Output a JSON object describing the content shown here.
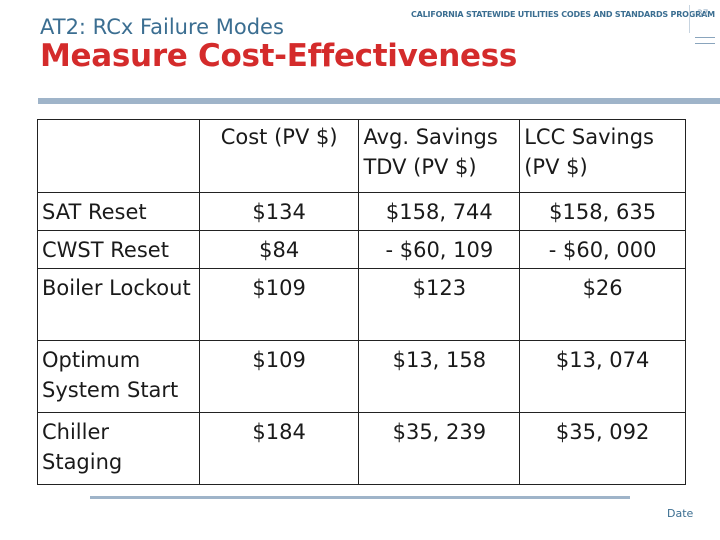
{
  "header": {
    "subtitle": "AT2: RCx Failure Modes",
    "program": "CALIFORNIA STATEWIDE UTILITIES CODES AND STANDARDS PROGRAM",
    "page_number": "37",
    "title": "Measure Cost-Effectiveness"
  },
  "table": {
    "headers": [
      "",
      "Cost (PV $)",
      "Avg. Savings TDV (PV $)",
      "LCC Savings (PV $)"
    ],
    "rows": [
      {
        "measure": "SAT Reset",
        "cost": "$134",
        "tdv": "$158, 744",
        "lcc": "$158, 635"
      },
      {
        "measure": "CWST Reset",
        "cost": "$84",
        "tdv": "- $60, 109",
        "lcc": "- $60, 000"
      },
      {
        "measure": "Boiler Lockout",
        "cost": "$109",
        "tdv": "$123",
        "lcc": "$26"
      },
      {
        "measure": "Optimum System Start",
        "cost": "$109",
        "tdv": "$13, 158",
        "lcc": "$13, 074"
      },
      {
        "measure": "Chiller Staging",
        "cost": "$184",
        "tdv": "$35, 239",
        "lcc": "$35, 092"
      }
    ]
  },
  "footer": {
    "date_label": "Date"
  },
  "colors": {
    "title": "#d42b2b",
    "accent_blue": "#3b6e91",
    "rule": "#9fb4c9"
  }
}
